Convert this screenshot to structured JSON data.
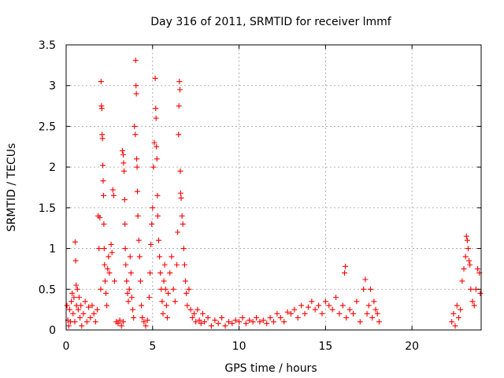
{
  "chart_data": {
    "type": "scatter",
    "title": "Day 316 of 2011, SRMTID for receiver lmmf",
    "xlabel": "GPS time / hours",
    "ylabel": "SRMTID / TECUs",
    "xlim": [
      0,
      24
    ],
    "ylim": [
      0,
      3.5
    ],
    "xticks": [
      0,
      5,
      10,
      15,
      20
    ],
    "yticks": [
      0,
      0.5,
      1,
      1.5,
      2,
      2.5,
      3,
      3.5
    ],
    "ytick_labels": [
      "0",
      "0.5",
      "1",
      "1.5",
      "2",
      "2.5",
      "3",
      "3.5"
    ],
    "grid": true,
    "marker": "plus",
    "color": "#ff0000",
    "points": [
      [
        0.05,
        0.3
      ],
      [
        0.1,
        0.12
      ],
      [
        0.15,
        0.05
      ],
      [
        0.2,
        0.25
      ],
      [
        0.25,
        0.1
      ],
      [
        0.3,
        0.35
      ],
      [
        0.35,
        0.45
      ],
      [
        0.4,
        0.2
      ],
      [
        0.45,
        0.4
      ],
      [
        0.5,
        0.1
      ],
      [
        0.52,
        1.08
      ],
      [
        0.55,
        0.85
      ],
      [
        0.58,
        0.55
      ],
      [
        0.6,
        0.3
      ],
      [
        0.65,
        0.5
      ],
      [
        0.7,
        0.25
      ],
      [
        0.75,
        0.4
      ],
      [
        0.8,
        0.15
      ],
      [
        0.85,
        0.3
      ],
      [
        0.9,
        0.05
      ],
      [
        1.0,
        0.2
      ],
      [
        1.1,
        0.35
      ],
      [
        1.2,
        0.1
      ],
      [
        1.3,
        0.28
      ],
      [
        1.4,
        0.15
      ],
      [
        1.5,
        0.3
      ],
      [
        1.6,
        0.2
      ],
      [
        1.7,
        0.1
      ],
      [
        1.8,
        0.25
      ],
      [
        1.9,
        1.0
      ],
      [
        1.85,
        1.4
      ],
      [
        1.95,
        1.38
      ],
      [
        2.0,
        0.5
      ],
      [
        2.02,
        3.05
      ],
      [
        2.04,
        2.75
      ],
      [
        2.06,
        2.72
      ],
      [
        2.08,
        2.4
      ],
      [
        2.1,
        2.35
      ],
      [
        2.12,
        2.02
      ],
      [
        2.14,
        1.83
      ],
      [
        2.16,
        1.65
      ],
      [
        2.18,
        1.3
      ],
      [
        2.2,
        1.0
      ],
      [
        2.22,
        0.8
      ],
      [
        2.25,
        0.6
      ],
      [
        2.3,
        0.45
      ],
      [
        2.35,
        0.3
      ],
      [
        2.4,
        0.75
      ],
      [
        2.45,
        0.9
      ],
      [
        2.5,
        0.7
      ],
      [
        2.6,
        1.05
      ],
      [
        2.65,
        0.95
      ],
      [
        2.7,
        1.72
      ],
      [
        2.75,
        1.65
      ],
      [
        2.8,
        0.6
      ],
      [
        2.9,
        0.1
      ],
      [
        3.0,
        0.08
      ],
      [
        3.1,
        0.12
      ],
      [
        3.2,
        0.05
      ],
      [
        3.3,
        0.1
      ],
      [
        3.25,
        2.2
      ],
      [
        3.3,
        2.15
      ],
      [
        3.32,
        2.05
      ],
      [
        3.35,
        1.95
      ],
      [
        3.38,
        1.6
      ],
      [
        3.4,
        1.3
      ],
      [
        3.42,
        1.0
      ],
      [
        3.45,
        0.8
      ],
      [
        3.5,
        0.6
      ],
      [
        3.55,
        0.45
      ],
      [
        3.6,
        0.35
      ],
      [
        3.65,
        0.5
      ],
      [
        3.7,
        0.9
      ],
      [
        3.75,
        0.7
      ],
      [
        3.8,
        0.4
      ],
      [
        3.85,
        0.25
      ],
      [
        3.9,
        0.15
      ],
      [
        3.95,
        2.5
      ],
      [
        4.0,
        2.4
      ],
      [
        4.02,
        3.31
      ],
      [
        4.04,
        3.0
      ],
      [
        4.06,
        2.9
      ],
      [
        4.08,
        2.1
      ],
      [
        4.1,
        2.0
      ],
      [
        4.12,
        1.7
      ],
      [
        4.15,
        1.4
      ],
      [
        4.2,
        1.1
      ],
      [
        4.25,
        0.9
      ],
      [
        4.3,
        0.6
      ],
      [
        4.35,
        0.3
      ],
      [
        4.4,
        0.15
      ],
      [
        4.5,
        0.1
      ],
      [
        4.6,
        0.05
      ],
      [
        4.7,
        0.12
      ],
      [
        4.8,
        0.4
      ],
      [
        4.85,
        0.7
      ],
      [
        4.9,
        1.05
      ],
      [
        4.95,
        1.3
      ],
      [
        5.0,
        1.5
      ],
      [
        5.05,
        2.0
      ],
      [
        5.1,
        2.3
      ],
      [
        5.15,
        3.09
      ],
      [
        5.18,
        2.72
      ],
      [
        5.2,
        2.6
      ],
      [
        5.22,
        2.25
      ],
      [
        5.25,
        2.1
      ],
      [
        5.28,
        1.65
      ],
      [
        5.3,
        1.4
      ],
      [
        5.35,
        1.1
      ],
      [
        5.4,
        0.9
      ],
      [
        5.45,
        0.7
      ],
      [
        5.5,
        0.5
      ],
      [
        5.55,
        0.35
      ],
      [
        5.6,
        0.2
      ],
      [
        5.65,
        0.6
      ],
      [
        5.7,
        0.8
      ],
      [
        5.75,
        0.5
      ],
      [
        5.8,
        0.3
      ],
      [
        5.85,
        0.15
      ],
      [
        5.9,
        0.45
      ],
      [
        6.0,
        0.7
      ],
      [
        6.1,
        0.9
      ],
      [
        6.2,
        0.5
      ],
      [
        6.3,
        0.35
      ],
      [
        6.4,
        0.8
      ],
      [
        6.45,
        1.2
      ],
      [
        6.5,
        2.4
      ],
      [
        6.52,
        2.75
      ],
      [
        6.55,
        3.05
      ],
      [
        6.58,
        2.95
      ],
      [
        6.6,
        1.95
      ],
      [
        6.62,
        1.68
      ],
      [
        6.65,
        1.62
      ],
      [
        6.7,
        1.4
      ],
      [
        6.75,
        1.3
      ],
      [
        6.8,
        1.0
      ],
      [
        6.85,
        0.8
      ],
      [
        6.9,
        0.6
      ],
      [
        6.95,
        0.45
      ],
      [
        7.0,
        0.3
      ],
      [
        7.1,
        0.5
      ],
      [
        7.2,
        0.25
      ],
      [
        7.3,
        0.15
      ],
      [
        7.4,
        0.2
      ],
      [
        7.5,
        0.1
      ],
      [
        7.6,
        0.25
      ],
      [
        7.7,
        0.12
      ],
      [
        7.8,
        0.08
      ],
      [
        7.9,
        0.2
      ],
      [
        8.0,
        0.1
      ],
      [
        8.2,
        0.15
      ],
      [
        8.4,
        0.05
      ],
      [
        8.6,
        0.12
      ],
      [
        8.8,
        0.08
      ],
      [
        9.0,
        0.15
      ],
      [
        9.2,
        0.05
      ],
      [
        9.4,
        0.1
      ],
      [
        9.6,
        0.08
      ],
      [
        9.8,
        0.12
      ],
      [
        10.0,
        0.1
      ],
      [
        10.2,
        0.15
      ],
      [
        10.4,
        0.08
      ],
      [
        10.6,
        0.12
      ],
      [
        10.8,
        0.1
      ],
      [
        11.0,
        0.15
      ],
      [
        11.2,
        0.1
      ],
      [
        11.4,
        0.12
      ],
      [
        11.6,
        0.08
      ],
      [
        11.8,
        0.15
      ],
      [
        12.0,
        0.1
      ],
      [
        12.2,
        0.2
      ],
      [
        12.4,
        0.15
      ],
      [
        12.6,
        0.1
      ],
      [
        12.8,
        0.22
      ],
      [
        13.0,
        0.2
      ],
      [
        13.2,
        0.25
      ],
      [
        13.4,
        0.15
      ],
      [
        13.6,
        0.3
      ],
      [
        13.8,
        0.2
      ],
      [
        14.0,
        0.28
      ],
      [
        14.2,
        0.35
      ],
      [
        14.4,
        0.25
      ],
      [
        14.6,
        0.3
      ],
      [
        14.8,
        0.2
      ],
      [
        15.0,
        0.35
      ],
      [
        15.2,
        0.3
      ],
      [
        15.4,
        0.25
      ],
      [
        15.6,
        0.4
      ],
      [
        15.8,
        0.2
      ],
      [
        16.0,
        0.3
      ],
      [
        16.1,
        0.7
      ],
      [
        16.15,
        0.78
      ],
      [
        16.2,
        0.15
      ],
      [
        16.4,
        0.25
      ],
      [
        16.6,
        0.2
      ],
      [
        16.8,
        0.35
      ],
      [
        17.0,
        0.1
      ],
      [
        17.2,
        0.5
      ],
      [
        17.3,
        0.62
      ],
      [
        17.4,
        0.2
      ],
      [
        17.5,
        0.3
      ],
      [
        17.6,
        0.5
      ],
      [
        17.7,
        0.15
      ],
      [
        17.8,
        0.35
      ],
      [
        17.9,
        0.25
      ],
      [
        18.0,
        0.2
      ],
      [
        18.1,
        0.1
      ],
      [
        22.3,
        0.1
      ],
      [
        22.4,
        0.2
      ],
      [
        22.5,
        0.05
      ],
      [
        22.6,
        0.3
      ],
      [
        22.7,
        0.15
      ],
      [
        22.8,
        0.25
      ],
      [
        22.9,
        0.6
      ],
      [
        23.0,
        0.75
      ],
      [
        23.1,
        0.9
      ],
      [
        23.15,
        1.15
      ],
      [
        23.2,
        1.1
      ],
      [
        23.25,
        1.0
      ],
      [
        23.3,
        0.85
      ],
      [
        23.35,
        0.8
      ],
      [
        23.4,
        0.5
      ],
      [
        23.5,
        0.35
      ],
      [
        23.6,
        0.3
      ],
      [
        23.7,
        0.5
      ],
      [
        23.8,
        0.75
      ],
      [
        23.9,
        0.7
      ],
      [
        23.95,
        0.45
      ]
    ]
  }
}
